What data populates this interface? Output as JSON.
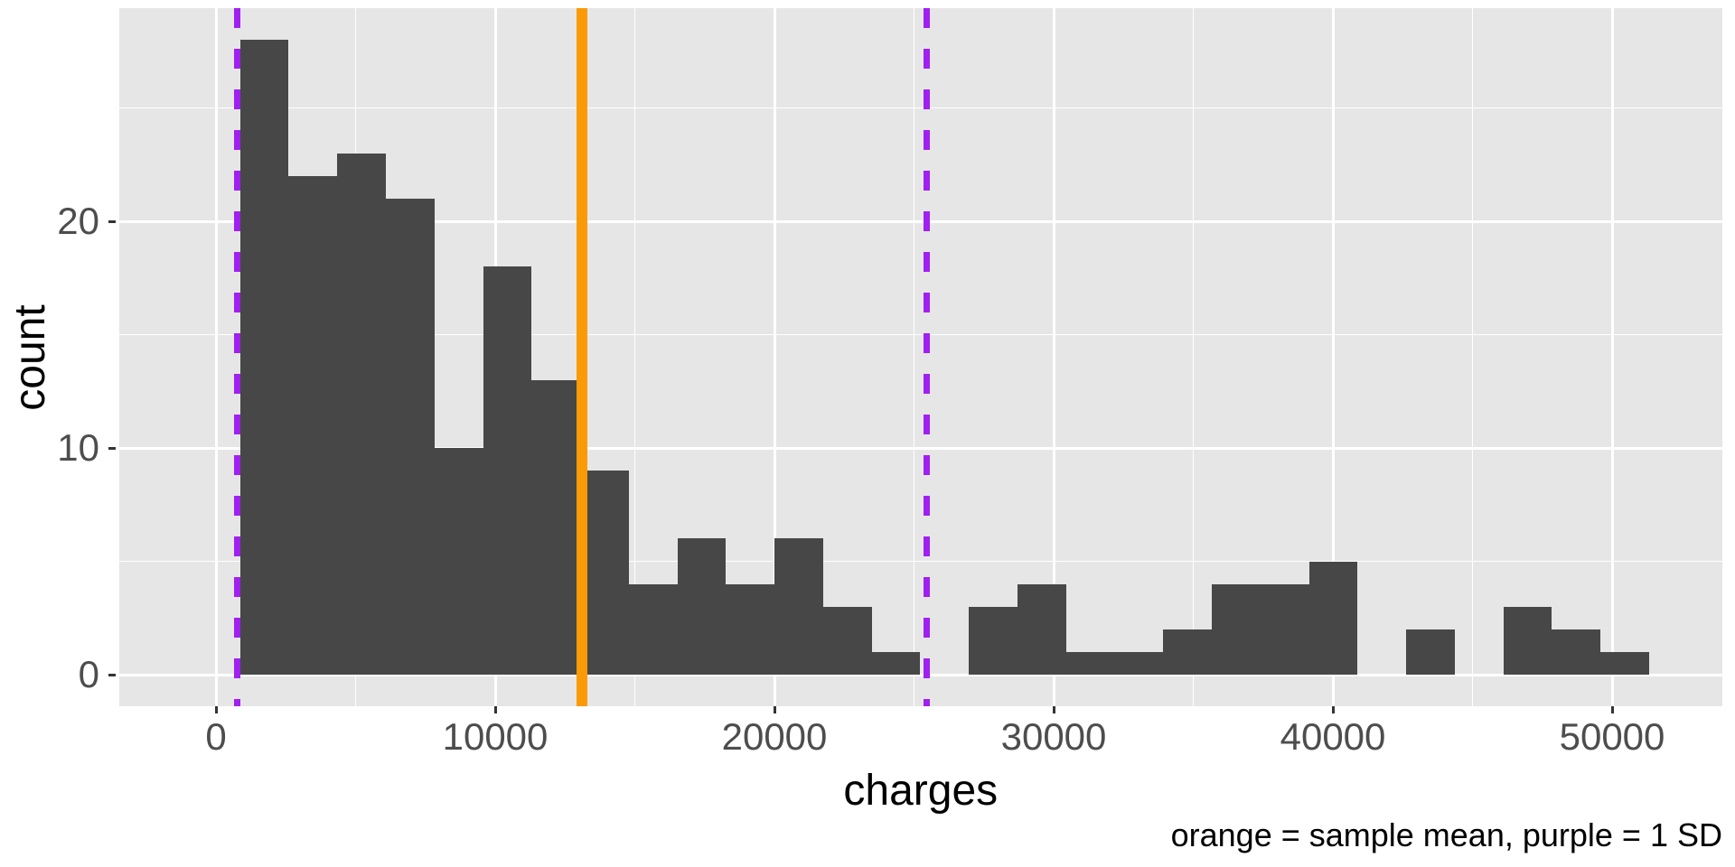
{
  "figure": {
    "background": "#ffffff",
    "caption": "orange = sample mean, purple = 1 SD",
    "x_axis": {
      "title": "charges",
      "tick_labels": [
        "0",
        "10000",
        "20000",
        "30000",
        "40000",
        "50000"
      ]
    },
    "y_axis": {
      "title": "count",
      "tick_labels": [
        "0",
        "10",
        "20"
      ]
    },
    "colors": {
      "bar_fill": "#474747",
      "panel_background": "#e6e6e6",
      "gridline": "#ffffff",
      "mean_line_orange": "#fa9a06",
      "sd_line_purple": "#a020f0",
      "tick_label_text": "#4d4d4d",
      "tick_mark": "#333333",
      "title_text": "#000000"
    }
  },
  "chart_data": {
    "type": "bar",
    "subtype": "histogram",
    "title": "",
    "xlabel": "charges",
    "ylabel": "count",
    "bin_start": 864,
    "bin_width": 1740,
    "counts": [
      28,
      22,
      23,
      21,
      10,
      18,
      13,
      9,
      4,
      6,
      4,
      6,
      3,
      1,
      0,
      3,
      4,
      1,
      1,
      2,
      4,
      4,
      5,
      0,
      2,
      0,
      3,
      2,
      1
    ],
    "n_total": 200,
    "vlines": {
      "sample_mean": 13100,
      "mean_minus_sd": 750,
      "mean_plus_sd": 25450
    },
    "x_ticks": [
      0,
      10000,
      20000,
      30000,
      40000,
      50000
    ],
    "x_minor_ticks": [
      5000,
      15000,
      25000,
      35000,
      45000
    ],
    "y_ticks": [
      0,
      10,
      20
    ],
    "y_minor_ticks": [
      5,
      15,
      25
    ],
    "xlim": [
      -3430,
      53950
    ],
    "ylim": [
      -1.4,
      29.4
    ],
    "grid": true,
    "legend": "none"
  }
}
